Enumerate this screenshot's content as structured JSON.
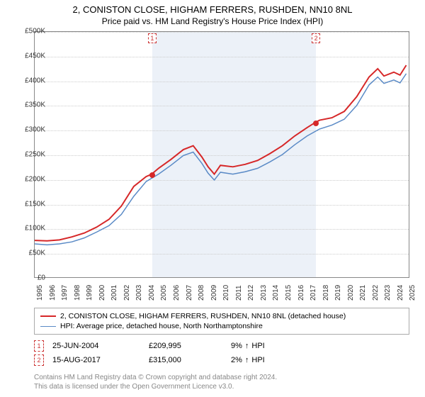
{
  "title": "2, CONISTON CLOSE, HIGHAM FERRERS, RUSHDEN, NN10 8NL",
  "subtitle": "Price paid vs. HM Land Registry's House Price Index (HPI)",
  "chart": {
    "type": "line",
    "background_color": "#ffffff",
    "grid_color": "#cccccc",
    "axis_color": "#888888",
    "xlim": [
      1995,
      2025.2
    ],
    "ylim": [
      0,
      500000
    ],
    "ytick_step": 50000,
    "yticks": [
      "£0",
      "£50K",
      "£100K",
      "£150K",
      "£200K",
      "£250K",
      "£300K",
      "£350K",
      "£400K",
      "£450K",
      "£500K"
    ],
    "xticks": [
      "1995",
      "1996",
      "1997",
      "1998",
      "1999",
      "2000",
      "2001",
      "2002",
      "2003",
      "2004",
      "2005",
      "2006",
      "2007",
      "2008",
      "2009",
      "2010",
      "2011",
      "2012",
      "2013",
      "2014",
      "2015",
      "2016",
      "2017",
      "2018",
      "2019",
      "2020",
      "2021",
      "2022",
      "2023",
      "2024",
      "2025"
    ],
    "shade_band": {
      "start_year": 2004.45,
      "end_year": 2017.63,
      "color": "rgba(200,215,235,0.35)"
    },
    "series": [
      {
        "id": "price_paid",
        "label": "2, CONISTON CLOSE, HIGHAM FERRERS, RUSHDEN, NN10 8NL (detached house)",
        "color": "#d62728",
        "line_width": 2,
        "points": [
          [
            1995.0,
            75000
          ],
          [
            1996.0,
            74000
          ],
          [
            1997.0,
            76000
          ],
          [
            1998.0,
            82000
          ],
          [
            1999.0,
            90000
          ],
          [
            2000.0,
            102000
          ],
          [
            2001.0,
            118000
          ],
          [
            2002.0,
            145000
          ],
          [
            2003.0,
            185000
          ],
          [
            2004.0,
            205000
          ],
          [
            2004.45,
            209995
          ],
          [
            2005.0,
            222000
          ],
          [
            2006.0,
            240000
          ],
          [
            2007.0,
            260000
          ],
          [
            2007.8,
            268000
          ],
          [
            2008.5,
            245000
          ],
          [
            2009.0,
            225000
          ],
          [
            2009.5,
            210000
          ],
          [
            2010.0,
            228000
          ],
          [
            2011.0,
            225000
          ],
          [
            2012.0,
            230000
          ],
          [
            2013.0,
            238000
          ],
          [
            2014.0,
            252000
          ],
          [
            2015.0,
            268000
          ],
          [
            2016.0,
            288000
          ],
          [
            2017.0,
            305000
          ],
          [
            2017.63,
            315000
          ],
          [
            2018.0,
            320000
          ],
          [
            2019.0,
            325000
          ],
          [
            2020.0,
            338000
          ],
          [
            2021.0,
            368000
          ],
          [
            2022.0,
            408000
          ],
          [
            2022.7,
            425000
          ],
          [
            2023.2,
            410000
          ],
          [
            2024.0,
            418000
          ],
          [
            2024.5,
            412000
          ],
          [
            2025.0,
            432000
          ]
        ]
      },
      {
        "id": "hpi",
        "label": "HPI: Average price, detached house, North Northamptonshire",
        "color": "#5a8ac6",
        "line_width": 1.5,
        "points": [
          [
            1995.0,
            68000
          ],
          [
            1996.0,
            66000
          ],
          [
            1997.0,
            68000
          ],
          [
            1998.0,
            72000
          ],
          [
            1999.0,
            80000
          ],
          [
            2000.0,
            92000
          ],
          [
            2001.0,
            105000
          ],
          [
            2002.0,
            128000
          ],
          [
            2003.0,
            165000
          ],
          [
            2004.0,
            195000
          ],
          [
            2005.0,
            210000
          ],
          [
            2006.0,
            228000
          ],
          [
            2007.0,
            248000
          ],
          [
            2007.8,
            255000
          ],
          [
            2008.5,
            232000
          ],
          [
            2009.0,
            212000
          ],
          [
            2009.5,
            198000
          ],
          [
            2010.0,
            214000
          ],
          [
            2011.0,
            210000
          ],
          [
            2012.0,
            215000
          ],
          [
            2013.0,
            222000
          ],
          [
            2014.0,
            235000
          ],
          [
            2015.0,
            250000
          ],
          [
            2016.0,
            270000
          ],
          [
            2017.0,
            288000
          ],
          [
            2018.0,
            302000
          ],
          [
            2019.0,
            310000
          ],
          [
            2020.0,
            322000
          ],
          [
            2021.0,
            350000
          ],
          [
            2022.0,
            392000
          ],
          [
            2022.7,
            408000
          ],
          [
            2023.2,
            395000
          ],
          [
            2024.0,
            402000
          ],
          [
            2024.5,
            396000
          ],
          [
            2025.0,
            415000
          ]
        ]
      }
    ],
    "transaction_markers": [
      {
        "n": "1",
        "year": 2004.45,
        "price": 209995,
        "dot_color": "#d62728"
      },
      {
        "n": "2",
        "year": 2017.63,
        "price": 315000,
        "dot_color": "#d62728"
      }
    ]
  },
  "transactions": [
    {
      "n": "1",
      "date": "25-JUN-2004",
      "price": "£209,995",
      "delta_pct": "9%",
      "delta_dir": "↑",
      "delta_label": "HPI"
    },
    {
      "n": "2",
      "date": "15-AUG-2017",
      "price": "£315,000",
      "delta_pct": "2%",
      "delta_dir": "↑",
      "delta_label": "HPI"
    }
  ],
  "footer": {
    "line1": "Contains HM Land Registry data © Crown copyright and database right 2024.",
    "line2": "This data is licensed under the Open Government Licence v3.0."
  },
  "marker_box_color": "#cc3333",
  "title_fontsize": 13,
  "label_fontsize": 10
}
